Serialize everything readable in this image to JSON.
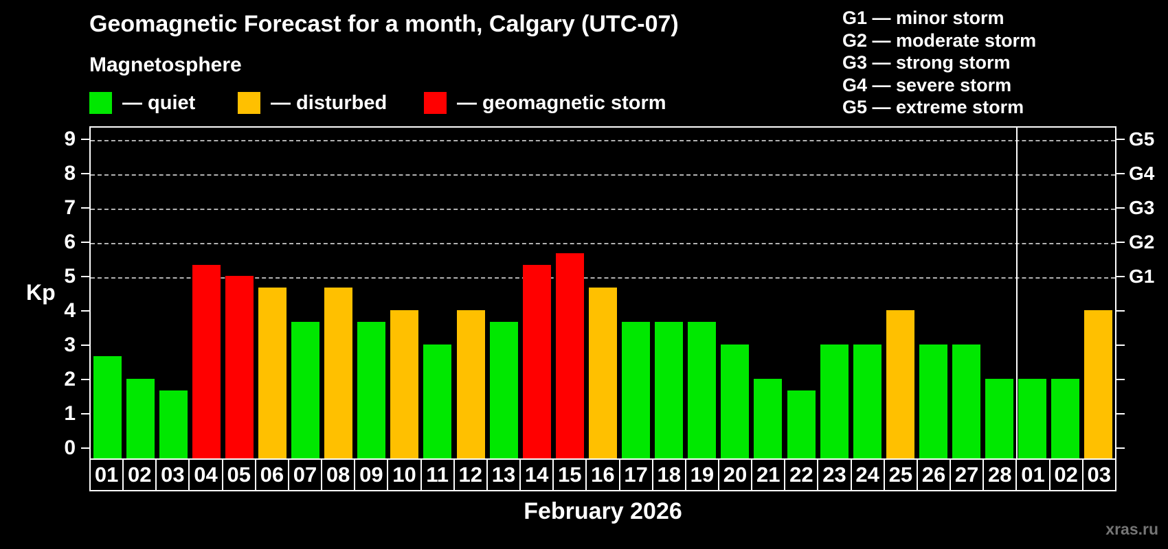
{
  "title": "Geomagnetic Forecast for a month, Calgary (UTC-07)",
  "subtitle": "Magnetosphere",
  "legend": {
    "quiet_label": "— quiet",
    "disturbed_label": "— disturbed",
    "storm_label": "— geomagnetic storm"
  },
  "g_scale_legend": [
    "G1 — minor storm",
    "G2 — moderate storm",
    "G3 — strong storm",
    "G4 — severe storm",
    "G5 — extreme storm"
  ],
  "axis": {
    "y_label": "Kp",
    "y_ticks": [
      0,
      1,
      2,
      3,
      4,
      5,
      6,
      7,
      8,
      9
    ],
    "right_labels": [
      {
        "kp": 5,
        "label": "G1"
      },
      {
        "kp": 6,
        "label": "G2"
      },
      {
        "kp": 7,
        "label": "G3"
      },
      {
        "kp": 8,
        "label": "G4"
      },
      {
        "kp": 9,
        "label": "G5"
      }
    ],
    "x_label": "February 2026"
  },
  "watermark": "xras.ru",
  "colors": {
    "quiet": "#00e800",
    "disturbed": "#ffc000",
    "storm": "#ff0000",
    "grid": "#b3b3b3",
    "axis": "#ffffff",
    "watermark": "#757575"
  },
  "chart_data": {
    "type": "bar",
    "title": "Geomagnetic Forecast for a month, Calgary (UTC-07)",
    "xlabel": "February 2026",
    "ylabel": "Kp",
    "ylim": [
      0,
      9
    ],
    "grid": "dashed horizontal lines at Kp 5-9 only",
    "legend_position": "top",
    "categories": [
      "01",
      "02",
      "03",
      "04",
      "05",
      "06",
      "07",
      "08",
      "09",
      "10",
      "11",
      "12",
      "13",
      "14",
      "15",
      "16",
      "17",
      "18",
      "19",
      "20",
      "21",
      "22",
      "23",
      "24",
      "25",
      "26",
      "27",
      "28",
      "01",
      "02",
      "03"
    ],
    "values": [
      2.67,
      2.0,
      1.67,
      5.33,
      5.0,
      4.67,
      3.67,
      4.67,
      3.67,
      4.0,
      3.0,
      4.0,
      3.67,
      5.33,
      5.67,
      4.67,
      3.67,
      3.67,
      3.67,
      3.0,
      2.0,
      1.67,
      3.0,
      3.0,
      4.0,
      3.0,
      3.0,
      2.0,
      2.0,
      2.0,
      4.0
    ],
    "statuses": [
      "quiet",
      "quiet",
      "quiet",
      "storm",
      "storm",
      "disturbed",
      "quiet",
      "disturbed",
      "quiet",
      "disturbed",
      "quiet",
      "disturbed",
      "quiet",
      "storm",
      "storm",
      "disturbed",
      "quiet",
      "quiet",
      "quiet",
      "quiet",
      "quiet",
      "quiet",
      "quiet",
      "quiet",
      "disturbed",
      "quiet",
      "quiet",
      "quiet",
      "quiet",
      "quiet",
      "disturbed"
    ],
    "month_boundary_after_index": 27
  }
}
